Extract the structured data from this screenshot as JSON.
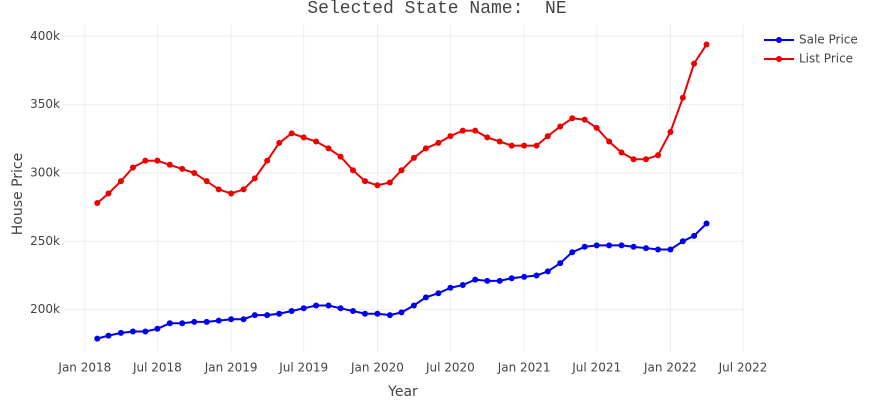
{
  "chart_data": {
    "type": "line",
    "title": "Selected State Name:  NE",
    "x_label": "Year",
    "y_label": "House Price",
    "x": [
      "2018-02",
      "2018-03",
      "2018-04",
      "2018-05",
      "2018-06",
      "2018-07",
      "2018-08",
      "2018-09",
      "2018-10",
      "2018-11",
      "2018-12",
      "2019-01",
      "2019-02",
      "2019-03",
      "2019-04",
      "2019-05",
      "2019-06",
      "2019-07",
      "2019-08",
      "2019-09",
      "2019-10",
      "2019-11",
      "2019-12",
      "2020-01",
      "2020-02",
      "2020-03",
      "2020-04",
      "2020-05",
      "2020-06",
      "2020-07",
      "2020-08",
      "2020-09",
      "2020-10",
      "2020-11",
      "2020-12",
      "2021-01",
      "2021-02",
      "2021-03",
      "2021-04",
      "2021-05",
      "2021-06",
      "2021-07",
      "2021-08",
      "2021-09",
      "2021-10",
      "2021-11",
      "2021-12",
      "2022-01",
      "2022-02",
      "2022-03",
      "2022-04"
    ],
    "series": [
      {
        "name": "Sale Price",
        "color": "#0000ee",
        "values": [
          178800,
          181000,
          183000,
          184000,
          184000,
          186000,
          190000,
          190000,
          191000,
          191000,
          192000,
          193000,
          193000,
          196000,
          196000,
          197000,
          199000,
          201000,
          203000,
          203000,
          201000,
          199000,
          197000,
          197000,
          196000,
          198000,
          203000,
          209000,
          212000,
          216000,
          218000,
          222000,
          221000,
          221000,
          223000,
          224000,
          225000,
          228000,
          234000,
          242000,
          246000,
          247000,
          247000,
          247000,
          246000,
          245000,
          244000,
          244000,
          250000,
          254000,
          263000
        ]
      },
      {
        "name": "List Price",
        "color": "#ee0000",
        "values": [
          278000,
          285000,
          294000,
          304000,
          309000,
          309000,
          306000,
          303000,
          300000,
          294000,
          288000,
          285000,
          288000,
          296000,
          309000,
          322000,
          329000,
          326000,
          323000,
          318000,
          312000,
          302000,
          294000,
          291000,
          293000,
          302000,
          311000,
          318000,
          322000,
          327000,
          331000,
          331000,
          326000,
          323000,
          320000,
          320000,
          320000,
          327000,
          334000,
          340000,
          339000,
          333000,
          323000,
          315000,
          310000,
          310000,
          313000,
          330000,
          355000,
          380000,
          394000
        ]
      }
    ],
    "xlim": [
      "2017-11-05",
      "2022-07-06"
    ],
    "xticks": [
      {
        "value": "2018-01",
        "label": "Jan 2018"
      },
      {
        "value": "2018-07",
        "label": "Jul 2018"
      },
      {
        "value": "2019-01",
        "label": "Jan 2019"
      },
      {
        "value": "2019-07",
        "label": "Jul 2019"
      },
      {
        "value": "2020-01",
        "label": "Jan 2020"
      },
      {
        "value": "2020-07",
        "label": "Jul 2020"
      },
      {
        "value": "2021-01",
        "label": "Jan 2021"
      },
      {
        "value": "2021-07",
        "label": "Jul 2021"
      },
      {
        "value": "2022-01",
        "label": "Jan 2022"
      },
      {
        "value": "2022-07",
        "label": "Jul 2022"
      }
    ],
    "ylim": [
      169000,
      409000
    ],
    "yticks": [
      {
        "value": 200000,
        "label": "200k"
      },
      {
        "value": 250000,
        "label": "250k"
      },
      {
        "value": 300000,
        "label": "300k"
      },
      {
        "value": 350000,
        "label": "350k"
      },
      {
        "value": 400000,
        "label": "400k"
      }
    ],
    "grid": true,
    "legend": "top-right"
  }
}
